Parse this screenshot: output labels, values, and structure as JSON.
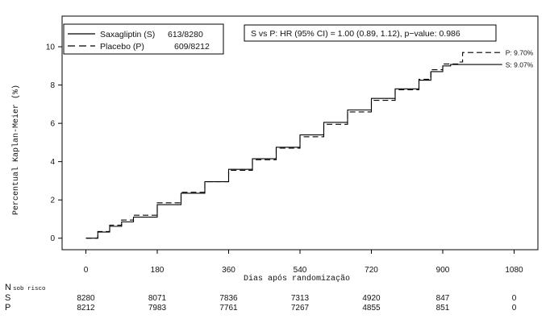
{
  "chart_data": {
    "type": "line",
    "xlabel": "Dias após randomização",
    "ylabel": "Percentual Kaplan-Meier (%)",
    "xlim": [
      -60,
      1140
    ],
    "ylim": [
      -0.6,
      11.6
    ],
    "xticks": [
      0,
      180,
      360,
      540,
      720,
      900,
      1080
    ],
    "yticks": [
      0,
      2,
      4,
      6,
      8,
      10
    ],
    "legend": {
      "position": "top-left",
      "entries": [
        {
          "name": "Saxagliptin (S)",
          "events": "613/8280",
          "style": "solid"
        },
        {
          "name": "Placebo (P)",
          "events": "609/8212",
          "style": "dashed"
        }
      ]
    },
    "annotation": "S vs P: HR (95% CI) = 1.00 (0.89, 1.12), p−value: 0.986",
    "series": [
      {
        "name": "Saxagliptin (S)",
        "style": "solid",
        "x": [
          0,
          30,
          60,
          90,
          120,
          180,
          240,
          300,
          360,
          420,
          480,
          540,
          600,
          660,
          720,
          780,
          840,
          870,
          900,
          920,
          940,
          960,
          1000,
          1050
        ],
        "y": [
          0,
          0.32,
          0.62,
          0.85,
          1.1,
          1.75,
          2.35,
          2.95,
          3.6,
          4.15,
          4.75,
          5.4,
          6.05,
          6.7,
          7.3,
          7.8,
          8.25,
          8.7,
          9.0,
          9.07,
          9.07,
          9.07,
          9.07,
          9.07
        ],
        "end_label": "S:  9.07%"
      },
      {
        "name": "Placebo (P)",
        "style": "dashed",
        "x": [
          0,
          30,
          60,
          90,
          120,
          180,
          240,
          300,
          360,
          420,
          480,
          540,
          600,
          660,
          720,
          780,
          840,
          870,
          900,
          940,
          950,
          1000,
          1050
        ],
        "y": [
          0,
          0.35,
          0.68,
          0.95,
          1.2,
          1.85,
          2.4,
          2.95,
          3.55,
          4.1,
          4.7,
          5.3,
          5.95,
          6.6,
          7.2,
          7.75,
          8.3,
          8.8,
          9.1,
          9.2,
          9.7,
          9.7,
          9.7
        ],
        "end_label": "P:  9.70%"
      }
    ],
    "risk_table": {
      "header": "N",
      "subheader": "sob risco",
      "rows": [
        {
          "label": "S",
          "values": [
            "8280",
            "8071",
            "7836",
            "7313",
            "4920",
            "847",
            "0"
          ]
        },
        {
          "label": "P",
          "values": [
            "8212",
            "7983",
            "7761",
            "7267",
            "4855",
            "851",
            "0"
          ]
        }
      ]
    }
  }
}
